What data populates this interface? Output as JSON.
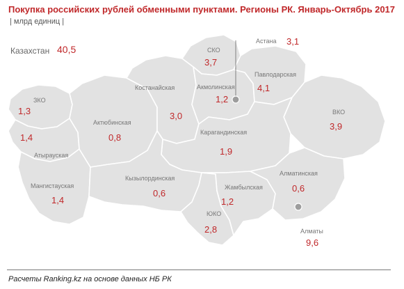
{
  "title": "Покупка российских рублей обменными пунктами. Регионы РК. Январь-Октябрь 2017",
  "unit": "| млрд единиц |",
  "total": {
    "label": "Казахстан",
    "value": "40,5"
  },
  "regions": [
    {
      "id": "zko",
      "name": "ЗКО",
      "value": "1,3"
    },
    {
      "id": "aktobe",
      "name": "Актюбинская",
      "value": "0,8"
    },
    {
      "id": "atyrau",
      "name": "Атырауская",
      "value": "1,4"
    },
    {
      "id": "mangistau",
      "name": "Мангистауская",
      "value": "1,4"
    },
    {
      "id": "kostanay",
      "name": "Костанайская",
      "value": "3,0"
    },
    {
      "id": "sko",
      "name": "СКО",
      "value": "3,7"
    },
    {
      "id": "akmola",
      "name": "Акмолинская",
      "value": "1,2"
    },
    {
      "id": "pavlodar",
      "name": "Павлодарская",
      "value": "4,1"
    },
    {
      "id": "vko",
      "name": "ВКО",
      "value": "3,9"
    },
    {
      "id": "karaganda",
      "name": "Карагандинская",
      "value": "1,9"
    },
    {
      "id": "kyzylorda",
      "name": "Кызылординская",
      "value": "0,6"
    },
    {
      "id": "zhambyl",
      "name": "Жамбылская",
      "value": "1,2"
    },
    {
      "id": "almaty_obl",
      "name": "Алматинская",
      "value": "0,6"
    },
    {
      "id": "yuko",
      "name": "ЮКО",
      "value": "2,8"
    }
  ],
  "cities": [
    {
      "id": "astana",
      "name": "Астана",
      "value": "3,1"
    },
    {
      "id": "almaty",
      "name": "Алматы",
      "value": "9,6"
    }
  ],
  "footnote": "Расчеты Ranking.kz на основе данных НБ РК"
}
